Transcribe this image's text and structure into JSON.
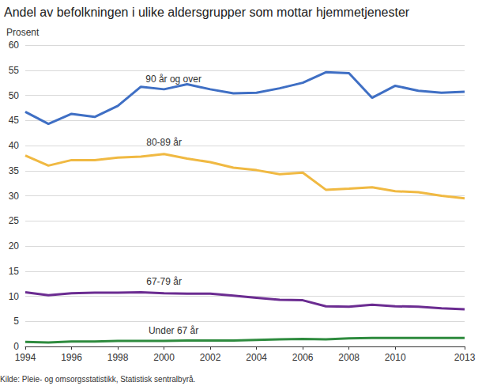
{
  "chart_data": {
    "type": "line",
    "title": "Andel av befolkningen i ulike aldersgrupper som mottar hjemmetjenester",
    "ylabel": "Prosent",
    "source": "Kilde: Pleie- og omsorgsstatistikk, Statistisk sentralbyrå.",
    "x": [
      1994,
      1995,
      1996,
      1997,
      1998,
      1999,
      2000,
      2001,
      2002,
      2003,
      2004,
      2005,
      2006,
      2007,
      2008,
      2009,
      2010,
      2011,
      2012,
      2013
    ],
    "xlim": [
      1994,
      2013
    ],
    "xticks": [
      1994,
      1996,
      1998,
      2000,
      2002,
      2004,
      2006,
      2008,
      2010,
      2013
    ],
    "ylim": [
      0,
      60
    ],
    "yticks": [
      0,
      5,
      10,
      15,
      20,
      25,
      30,
      35,
      40,
      45,
      50,
      55,
      60
    ],
    "grid": true,
    "series": [
      {
        "name": "90 år og over",
        "color": "#3f6fc4",
        "values": [
          46.7,
          44.3,
          46.3,
          45.7,
          47.9,
          51.7,
          51.2,
          52.2,
          51.2,
          50.4,
          50.5,
          51.4,
          52.5,
          54.6,
          54.4,
          49.5,
          51.9,
          50.9,
          50.5,
          50.7
        ]
      },
      {
        "name": "80-89 år",
        "color": "#f0b942",
        "values": [
          38.0,
          36.0,
          37.1,
          37.1,
          37.6,
          37.8,
          38.3,
          37.4,
          36.7,
          35.6,
          35.1,
          34.3,
          34.6,
          31.2,
          31.4,
          31.7,
          30.9,
          30.7,
          30.0,
          29.5
        ]
      },
      {
        "name": "67-79 år",
        "color": "#6b2c91",
        "values": [
          10.8,
          10.2,
          10.6,
          10.7,
          10.7,
          10.8,
          10.6,
          10.5,
          10.5,
          10.1,
          9.7,
          9.3,
          9.2,
          8.0,
          7.9,
          8.3,
          8.0,
          7.9,
          7.6,
          7.4
        ]
      },
      {
        "name": "Under 67 år",
        "color": "#2e8b3e",
        "values": [
          0.9,
          0.8,
          1.0,
          1.0,
          1.1,
          1.1,
          1.1,
          1.2,
          1.2,
          1.2,
          1.3,
          1.4,
          1.5,
          1.4,
          1.6,
          1.7,
          1.7,
          1.7,
          1.7,
          1.7
        ]
      }
    ]
  }
}
